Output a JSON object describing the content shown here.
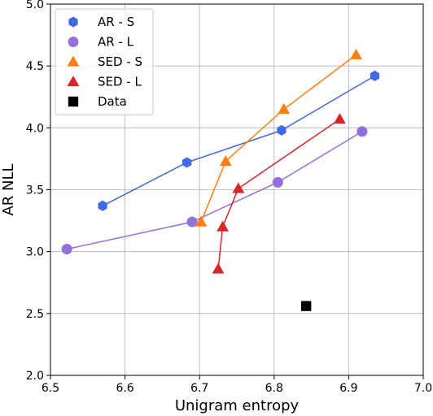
{
  "chart_data": {
    "type": "scatter",
    "title": "",
    "xlabel": "Unigram entropy",
    "ylabel": "AR NLL",
    "xlim": [
      6.5,
      7.0
    ],
    "ylim": [
      2.0,
      5.0
    ],
    "xticks": [
      "6.5",
      "6.6",
      "6.7",
      "6.8",
      "6.9",
      "7.0"
    ],
    "yticks": [
      "2.0",
      "2.5",
      "3.0",
      "3.5",
      "4.0",
      "4.5",
      "5.0"
    ],
    "grid": true,
    "legend_position": "top-left",
    "series": [
      {
        "name": "AR - S",
        "marker": "hexagon",
        "color": "#4169E1",
        "connected": true,
        "x": [
          6.57,
          6.683,
          6.81,
          6.935
        ],
        "y": [
          3.37,
          3.72,
          3.98,
          4.42
        ]
      },
      {
        "name": "AR - L",
        "marker": "circle",
        "color": "#9370DB",
        "connected": true,
        "x": [
          6.522,
          6.69,
          6.805,
          6.918
        ],
        "y": [
          3.02,
          3.24,
          3.56,
          3.97
        ]
      },
      {
        "name": "SED - S",
        "marker": "triangle",
        "color": "#FF7F0E",
        "connected": true,
        "x": [
          6.702,
          6.735,
          6.813,
          6.91
        ],
        "y": [
          3.24,
          3.73,
          4.15,
          4.59
        ]
      },
      {
        "name": "SED - L",
        "marker": "triangle",
        "color": "#D62728",
        "connected": true,
        "x": [
          6.725,
          6.731,
          6.752,
          6.888
        ],
        "y": [
          2.86,
          3.2,
          3.51,
          4.07
        ]
      },
      {
        "name": "Data",
        "marker": "square",
        "color": "#000000",
        "connected": false,
        "x": [
          6.843
        ],
        "y": [
          2.56
        ]
      }
    ]
  }
}
